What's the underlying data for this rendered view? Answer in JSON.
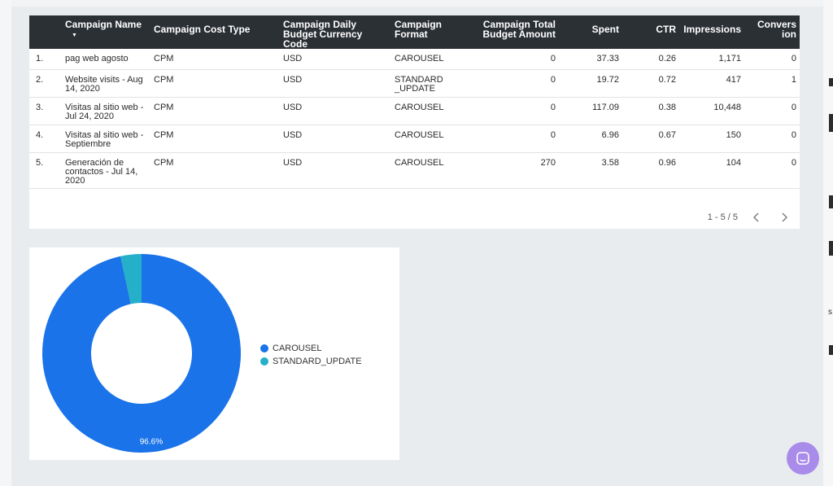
{
  "table": {
    "columns": [
      {
        "label": "Campaign Name",
        "sort": "▼"
      },
      {
        "label": "Campaign Cost Type"
      },
      {
        "label": "Campaign Daily Budget Currency Code"
      },
      {
        "label": "Campaign Format"
      },
      {
        "label": "Campaign Total Budget Amount"
      },
      {
        "label": "Spent"
      },
      {
        "label": "CTR"
      },
      {
        "label": "Impressions"
      },
      {
        "label": "Conversion"
      }
    ],
    "rows": [
      {
        "idx": "1.",
        "name": "pag web agosto",
        "cost_type": "CPM",
        "currency": "USD",
        "format": "CAROUSEL",
        "total_budget": "0",
        "spent": "37.33",
        "ctr": "0.26",
        "impressions": "1,171",
        "conversion": "0"
      },
      {
        "idx": "2.",
        "name": "Website visits - Aug 14, 2020",
        "cost_type": "CPM",
        "currency": "USD",
        "format": "STANDARD_UPDATE",
        "total_budget": "0",
        "spent": "19.72",
        "ctr": "0.72",
        "impressions": "417",
        "conversion": "1"
      },
      {
        "idx": "3.",
        "name": "Visitas al sitio web - Jul 24, 2020",
        "cost_type": "CPM",
        "currency": "USD",
        "format": "CAROUSEL",
        "total_budget": "0",
        "spent": "117.09",
        "ctr": "0.38",
        "impressions": "10,448",
        "conversion": "0"
      },
      {
        "idx": "4.",
        "name": "Visitas al sitio web - Septiembre",
        "cost_type": "CPM",
        "currency": "USD",
        "format": "CAROUSEL",
        "total_budget": "0",
        "spent": "6.96",
        "ctr": "0.67",
        "impressions": "150",
        "conversion": "0"
      },
      {
        "idx": "5.",
        "name": "Generación de contactos - Jul 14, 2020",
        "cost_type": "CPM",
        "currency": "USD",
        "format": "CAROUSEL",
        "total_budget": "270",
        "spent": "3.58",
        "ctr": "0.96",
        "impressions": "104",
        "conversion": "0"
      }
    ],
    "pagination": {
      "label": "1 - 5 / 5",
      "prev_icon": "chevron-left-icon",
      "next_icon": "chevron-right-icon"
    }
  },
  "chart_data": {
    "type": "pie",
    "categories": [
      "CAROUSEL",
      "STANDARD_UPDATE"
    ],
    "values": [
      96.6,
      3.4
    ],
    "colors": [
      "#1a73e8",
      "#24b0c8"
    ],
    "data_labels": [
      "96.6%",
      ""
    ],
    "donut": true,
    "legend": "right"
  },
  "chat": {
    "icon": "chat-icon",
    "color": "#a98bea"
  }
}
